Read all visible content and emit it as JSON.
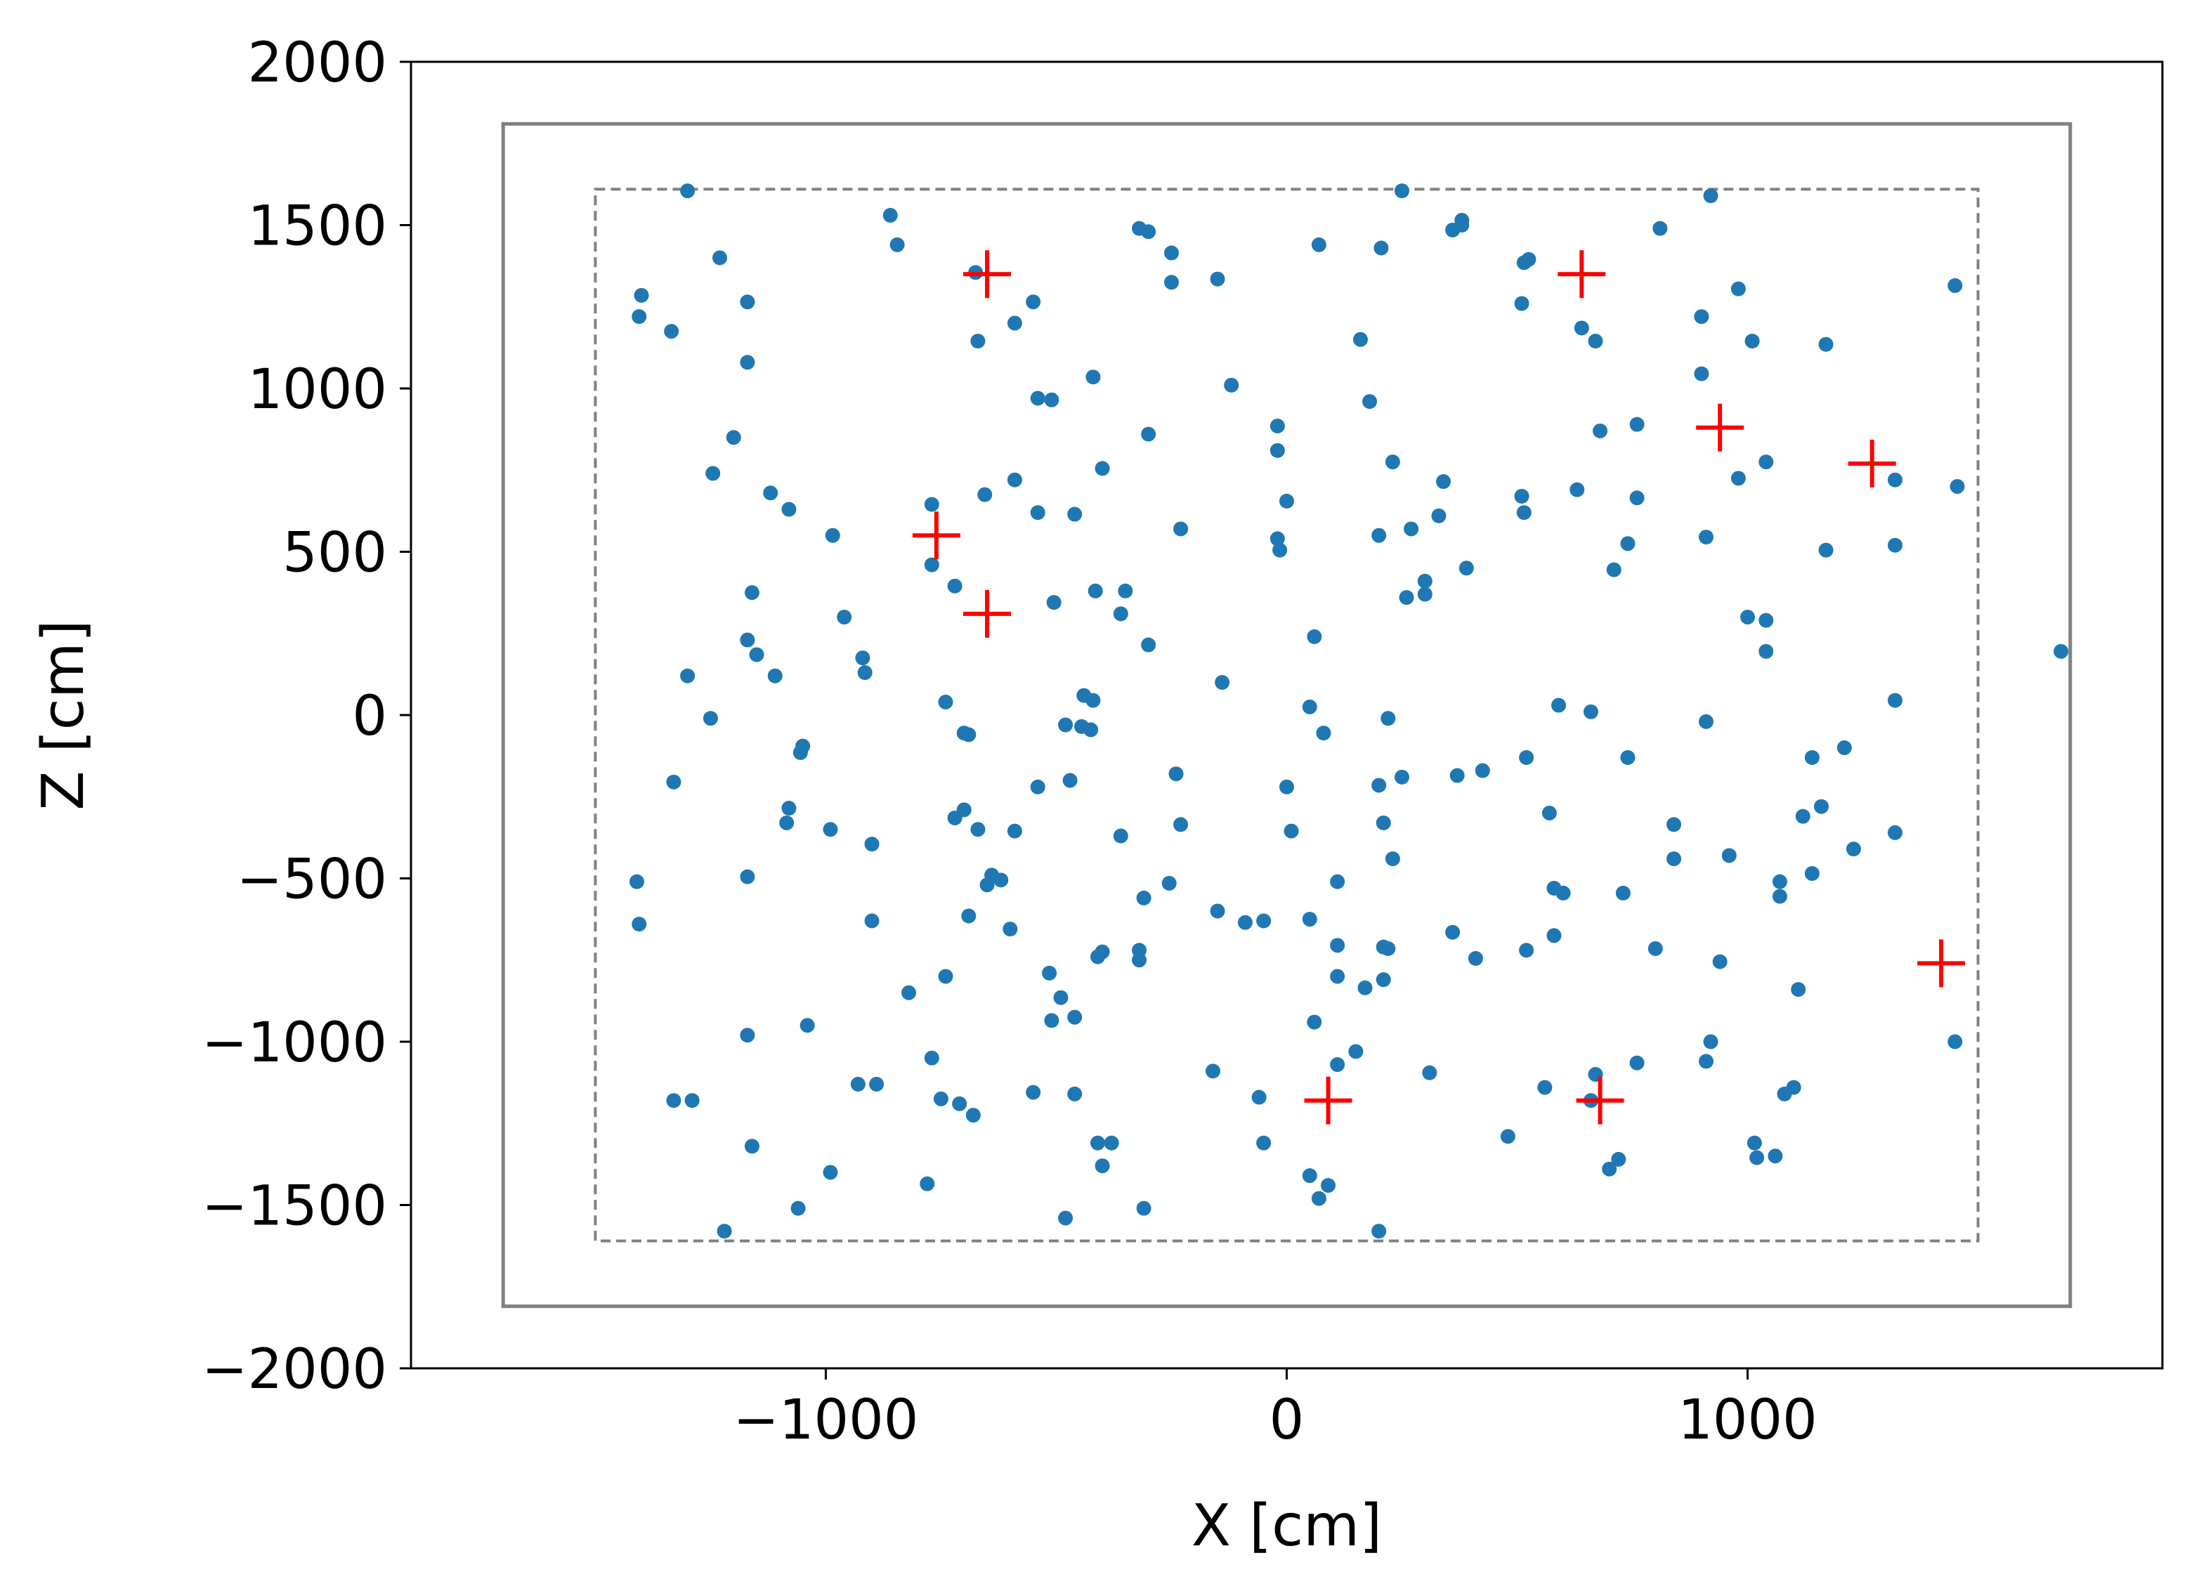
{
  "chart_data": {
    "type": "scatter",
    "title": "",
    "xlabel": "X [cm]",
    "ylabel": "Z [cm]",
    "xlim": [
      -1900,
      1900
    ],
    "ylim": [
      -2000,
      2000
    ],
    "xticks": [
      -1000,
      0,
      1000
    ],
    "xtick_labels": [
      "−1000",
      "0",
      "1000"
    ],
    "yticks": [
      2000,
      1500,
      1000,
      500,
      0,
      -500,
      -1000,
      -1500,
      -2000
    ],
    "ytick_labels": [
      "2000",
      "1500",
      "1000",
      "500",
      "0",
      "−500",
      "−1000",
      "−1500",
      "−2000"
    ],
    "grid": false,
    "outer_boundary": {
      "x": [
        -1700,
        1700
      ],
      "z": [
        -1810,
        1810
      ],
      "style": "solid",
      "color": "#808080"
    },
    "inner_boundary": {
      "x": [
        -1500,
        1500
      ],
      "z": [
        -1610,
        1610
      ],
      "style": "dashed",
      "color": "#808080"
    },
    "series": [
      {
        "marker": "dot",
        "color": "#1f77b4",
        "points": [
          [
            -1300,
            1605
          ],
          [
            -1400,
            1285
          ],
          [
            -1405,
            1220
          ],
          [
            -1335,
            1175
          ],
          [
            -1230,
            1400
          ],
          [
            -1170,
            1265
          ],
          [
            -1170,
            1080
          ],
          [
            -1200,
            850
          ],
          [
            -1245,
            740
          ],
          [
            -1120,
            680
          ],
          [
            -1080,
            630
          ],
          [
            -985,
            550
          ],
          [
            -860,
            1530
          ],
          [
            -845,
            1440
          ],
          [
            -675,
            1355
          ],
          [
            -670,
            1145
          ],
          [
            -590,
            1200
          ],
          [
            -550,
            1265
          ],
          [
            -540,
            970
          ],
          [
            -510,
            965
          ],
          [
            -420,
            1035
          ],
          [
            -320,
            1490
          ],
          [
            -300,
            1480
          ],
          [
            -300,
            860
          ],
          [
            -250,
            1415
          ],
          [
            -250,
            1325
          ],
          [
            -150,
            1335
          ],
          [
            -120,
            1010
          ],
          [
            -20,
            885
          ],
          [
            -20,
            810
          ],
          [
            0,
            655
          ],
          [
            -20,
            540
          ],
          [
            -15,
            505
          ],
          [
            70,
            1440
          ],
          [
            160,
            1150
          ],
          [
            180,
            960
          ],
          [
            205,
            1430
          ],
          [
            230,
            775
          ],
          [
            250,
            1605
          ],
          [
            270,
            570
          ],
          [
            340,
            715
          ],
          [
            360,
            1485
          ],
          [
            380,
            1500
          ],
          [
            380,
            1515
          ],
          [
            515,
            1385
          ],
          [
            525,
            1395
          ],
          [
            510,
            1260
          ],
          [
            640,
            1185
          ],
          [
            670,
            1145
          ],
          [
            680,
            870
          ],
          [
            760,
            890
          ],
          [
            810,
            1490
          ],
          [
            920,
            1590
          ],
          [
            900,
            1220
          ],
          [
            900,
            1045
          ],
          [
            980,
            1305
          ],
          [
            1010,
            1145
          ],
          [
            1170,
            1135
          ],
          [
            1450,
            1315
          ],
          [
            630,
            690
          ],
          [
            510,
            670
          ],
          [
            515,
            620
          ],
          [
            330,
            610
          ],
          [
            760,
            665
          ],
          [
            740,
            525
          ],
          [
            710,
            445
          ],
          [
            1040,
            775
          ],
          [
            980,
            725
          ],
          [
            1320,
            720
          ],
          [
            1455,
            700
          ],
          [
            910,
            545
          ],
          [
            1170,
            505
          ],
          [
            1320,
            520
          ],
          [
            -1160,
            375
          ],
          [
            -960,
            300
          ],
          [
            -920,
            175
          ],
          [
            -915,
            130
          ],
          [
            -1170,
            230
          ],
          [
            -1150,
            185
          ],
          [
            -1110,
            120
          ],
          [
            -1300,
            120
          ],
          [
            -1250,
            -10
          ],
          [
            -1050,
            -95
          ],
          [
            -1055,
            -115
          ],
          [
            -1080,
            -285
          ],
          [
            -1085,
            -330
          ],
          [
            -1330,
            -205
          ],
          [
            -770,
            645
          ],
          [
            -770,
            460
          ],
          [
            -720,
            395
          ],
          [
            -655,
            675
          ],
          [
            -590,
            720
          ],
          [
            -540,
            620
          ],
          [
            -460,
            615
          ],
          [
            -400,
            755
          ],
          [
            -505,
            345
          ],
          [
            -415,
            380
          ],
          [
            -350,
            380
          ],
          [
            -360,
            310
          ],
          [
            -300,
            215
          ],
          [
            -230,
            570
          ],
          [
            -140,
            100
          ],
          [
            200,
            550
          ],
          [
            300,
            410
          ],
          [
            300,
            370
          ],
          [
            260,
            360
          ],
          [
            390,
            450
          ],
          [
            660,
            10
          ],
          [
            1000,
            300
          ],
          [
            1040,
            290
          ],
          [
            1040,
            195
          ],
          [
            1680,
            195
          ],
          [
            910,
            -20
          ],
          [
            590,
            30
          ],
          [
            1320,
            45
          ],
          [
            1210,
            -100
          ],
          [
            1140,
            -130
          ],
          [
            1160,
            -280
          ],
          [
            1320,
            -360
          ],
          [
            1120,
            -310
          ],
          [
            1230,
            -410
          ],
          [
            960,
            -430
          ],
          [
            1070,
            -510
          ],
          [
            1070,
            -555
          ],
          [
            1140,
            -485
          ],
          [
            -740,
            40
          ],
          [
            -700,
            -55
          ],
          [
            -690,
            -60
          ],
          [
            -440,
            60
          ],
          [
            -420,
            45
          ],
          [
            -480,
            -30
          ],
          [
            -445,
            -35
          ],
          [
            -425,
            -45
          ],
          [
            -540,
            -220
          ],
          [
            -470,
            -200
          ],
          [
            -240,
            -180
          ],
          [
            -230,
            -335
          ],
          [
            -360,
            -370
          ],
          [
            -310,
            -560
          ],
          [
            -255,
            -515
          ],
          [
            -720,
            -315
          ],
          [
            -700,
            -290
          ],
          [
            -670,
            -350
          ],
          [
            -590,
            -355
          ],
          [
            -990,
            -350
          ],
          [
            -900,
            -395
          ],
          [
            -1170,
            -495
          ],
          [
            -1410,
            -510
          ],
          [
            -1405,
            -640
          ],
          [
            -650,
            -520
          ],
          [
            -640,
            -490
          ],
          [
            -620,
            -505
          ],
          [
            -900,
            -630
          ],
          [
            -690,
            -615
          ],
          [
            -600,
            -655
          ],
          [
            -820,
            -850
          ],
          [
            -740,
            -800
          ],
          [
            -515,
            -790
          ],
          [
            -490,
            -865
          ],
          [
            -460,
            -925
          ],
          [
            -510,
            -935
          ],
          [
            -410,
            -740
          ],
          [
            -400,
            -725
          ],
          [
            -320,
            -720
          ],
          [
            -320,
            -750
          ],
          [
            -150,
            -600
          ],
          [
            -90,
            -635
          ],
          [
            -50,
            -630
          ],
          [
            50,
            -625
          ],
          [
            0,
            -220
          ],
          [
            10,
            -355
          ],
          [
            50,
            25
          ],
          [
            80,
            -55
          ],
          [
            60,
            240
          ],
          [
            200,
            -215
          ],
          [
            210,
            -330
          ],
          [
            230,
            -440
          ],
          [
            220,
            -10
          ],
          [
            250,
            -190
          ],
          [
            110,
            -510
          ],
          [
            110,
            -705
          ],
          [
            110,
            -800
          ],
          [
            170,
            -835
          ],
          [
            210,
            -810
          ],
          [
            210,
            -710
          ],
          [
            220,
            -715
          ],
          [
            360,
            -665
          ],
          [
            370,
            -185
          ],
          [
            425,
            -170
          ],
          [
            410,
            -745
          ],
          [
            520,
            -720
          ],
          [
            520,
            -130
          ],
          [
            570,
            -300
          ],
          [
            580,
            -530
          ],
          [
            600,
            -545
          ],
          [
            580,
            -675
          ],
          [
            730,
            -545
          ],
          [
            740,
            -130
          ],
          [
            800,
            -715
          ],
          [
            840,
            -335
          ],
          [
            840,
            -440
          ],
          [
            940,
            -755
          ],
          [
            -1170,
            -980
          ],
          [
            -1040,
            -950
          ],
          [
            -890,
            -1130
          ],
          [
            -770,
            -1050
          ],
          [
            -750,
            -1175
          ],
          [
            -710,
            -1190
          ],
          [
            -680,
            -1225
          ],
          [
            -550,
            -1155
          ],
          [
            -460,
            -1160
          ],
          [
            -410,
            -1310
          ],
          [
            -400,
            -1380
          ],
          [
            -310,
            -1510
          ],
          [
            -160,
            -1090
          ],
          [
            -60,
            -1170
          ],
          [
            -50,
            -1310
          ],
          [
            60,
            -940
          ],
          [
            110,
            -1070
          ],
          [
            150,
            -1030
          ],
          [
            310,
            -1095
          ],
          [
            560,
            -1140
          ],
          [
            670,
            -1100
          ],
          [
            660,
            -1180
          ],
          [
            760,
            -1065
          ],
          [
            910,
            -1060
          ],
          [
            920,
            -1000
          ],
          [
            1100,
            -1140
          ],
          [
            1110,
            -840
          ],
          [
            1080,
            -1160
          ],
          [
            1450,
            -1000
          ],
          [
            1015,
            -1310
          ],
          [
            1020,
            -1355
          ],
          [
            1060,
            -1350
          ],
          [
            720,
            -1360
          ],
          [
            700,
            -1390
          ],
          [
            480,
            -1290
          ],
          [
            50,
            -1410
          ],
          [
            90,
            -1440
          ],
          [
            70,
            -1480
          ],
          [
            200,
            -1580
          ],
          [
            -380,
            -1310
          ],
          [
            -480,
            -1540
          ],
          [
            -780,
            -1435
          ],
          [
            -990,
            -1400
          ],
          [
            -1060,
            -1510
          ],
          [
            -1220,
            -1580
          ],
          [
            -1330,
            -1180
          ],
          [
            -1290,
            -1180
          ],
          [
            -1160,
            -1320
          ],
          [
            -930,
            -1130
          ]
        ]
      },
      {
        "marker": "plus",
        "color": "#ff0000",
        "points": [
          [
            -650,
            1350
          ],
          [
            -760,
            550
          ],
          [
            -650,
            310
          ],
          [
            640,
            1350
          ],
          [
            940,
            880
          ],
          [
            1270,
            770
          ],
          [
            1420,
            -760
          ],
          [
            90,
            -1180
          ],
          [
            680,
            -1180
          ]
        ]
      }
    ]
  }
}
